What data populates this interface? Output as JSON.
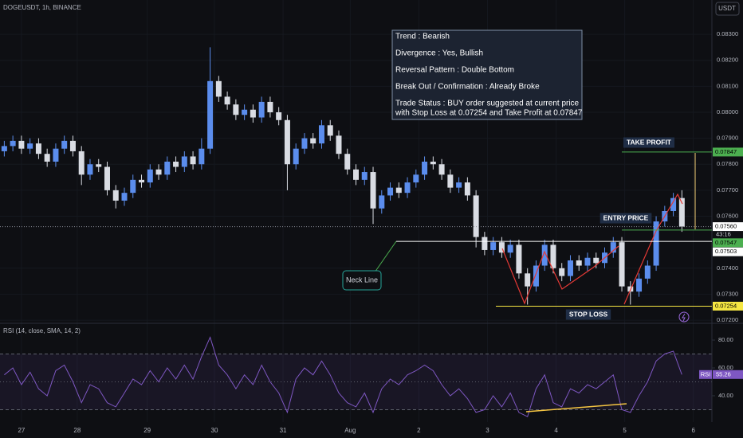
{
  "header": {
    "symbol": "DOGEUSDT, 1h, BINANCE",
    "currency": "USDT"
  },
  "chart_data": {
    "type": "candlestick",
    "x": [
      1.5,
      4.5,
      7.5,
      10.5,
      13.5,
      16.5,
      19.5,
      22.5,
      25.5,
      28.5,
      31.5,
      34.5,
      37.5,
      40.5,
      43.5,
      46.5,
      49.5,
      52.5,
      55.5,
      58.5,
      61.5,
      64.5,
      67.5,
      70.5,
      73.5,
      76.5,
      79.5,
      82.5,
      85.5,
      88.5,
      91.5,
      94.5,
      97.5,
      100.5,
      103.5,
      106.5,
      109.5,
      112.5,
      115.5,
      118.5,
      121.5,
      124.5,
      127.5,
      130.5,
      133.5,
      136.5,
      139.5,
      142.5,
      145.5,
      148.5,
      151.5,
      154.5,
      157.5,
      160.5,
      163.5,
      166.5,
      169.5,
      172.5,
      175.5,
      178.5,
      181.5,
      184.5,
      187.5,
      190.5,
      193.5,
      196.5,
      199.5,
      202.5,
      205.5,
      208.5,
      211.5,
      214.5,
      217.5,
      220.5,
      223.5,
      226.5,
      229.5,
      232.5,
      235.5,
      238.5
    ],
    "candles": [
      [
        0.0785,
        0.0789,
        0.0783,
        0.0787
      ],
      [
        0.0787,
        0.0791,
        0.0785,
        0.0789
      ],
      [
        0.0789,
        0.0791,
        0.0784,
        0.0786
      ],
      [
        0.0786,
        0.079,
        0.0784,
        0.0788
      ],
      [
        0.0788,
        0.079,
        0.0782,
        0.0784
      ],
      [
        0.0784,
        0.0786,
        0.0779,
        0.0781
      ],
      [
        0.0781,
        0.0788,
        0.0779,
        0.0786
      ],
      [
        0.0786,
        0.0791,
        0.0784,
        0.0789
      ],
      [
        0.0789,
        0.0791,
        0.0783,
        0.0785
      ],
      [
        0.0785,
        0.0787,
        0.0772,
        0.0776
      ],
      [
        0.0776,
        0.0782,
        0.0774,
        0.078
      ],
      [
        0.078,
        0.0782,
        0.0777,
        0.0779
      ],
      [
        0.0779,
        0.0781,
        0.0768,
        0.077
      ],
      [
        0.077,
        0.0772,
        0.0763,
        0.0766
      ],
      [
        0.0766,
        0.0771,
        0.0764,
        0.0769
      ],
      [
        0.0769,
        0.0776,
        0.0767,
        0.0774
      ],
      [
        0.0774,
        0.0776,
        0.0771,
        0.0773
      ],
      [
        0.0773,
        0.078,
        0.0771,
        0.0778
      ],
      [
        0.0778,
        0.078,
        0.0774,
        0.0776
      ],
      [
        0.0776,
        0.0783,
        0.0774,
        0.0781
      ],
      [
        0.0781,
        0.0783,
        0.0777,
        0.0779
      ],
      [
        0.0779,
        0.0785,
        0.0777,
        0.0783
      ],
      [
        0.0783,
        0.0785,
        0.0778,
        0.078
      ],
      [
        0.078,
        0.079,
        0.0778,
        0.0786
      ],
      [
        0.0786,
        0.0825,
        0.0784,
        0.0812
      ],
      [
        0.0812,
        0.0814,
        0.0804,
        0.0806
      ],
      [
        0.0806,
        0.0808,
        0.0801,
        0.0803
      ],
      [
        0.0803,
        0.0805,
        0.0797,
        0.0799
      ],
      [
        0.0799,
        0.0803,
        0.0797,
        0.0801
      ],
      [
        0.0801,
        0.0803,
        0.0796,
        0.0798
      ],
      [
        0.0798,
        0.0806,
        0.0796,
        0.0804
      ],
      [
        0.0804,
        0.0806,
        0.0798,
        0.08
      ],
      [
        0.08,
        0.0802,
        0.0795,
        0.0797
      ],
      [
        0.0797,
        0.0799,
        0.077,
        0.078
      ],
      [
        0.078,
        0.0788,
        0.0778,
        0.0786
      ],
      [
        0.0786,
        0.0792,
        0.0784,
        0.079
      ],
      [
        0.079,
        0.0792,
        0.0786,
        0.0788
      ],
      [
        0.0788,
        0.0797,
        0.0786,
        0.0795
      ],
      [
        0.0795,
        0.0797,
        0.0789,
        0.0791
      ],
      [
        0.0791,
        0.0793,
        0.0782,
        0.0784
      ],
      [
        0.0784,
        0.0786,
        0.0776,
        0.0778
      ],
      [
        0.0778,
        0.078,
        0.0772,
        0.0774
      ],
      [
        0.0774,
        0.0779,
        0.0772,
        0.0777
      ],
      [
        0.0777,
        0.0779,
        0.0757,
        0.0763
      ],
      [
        0.0763,
        0.077,
        0.0761,
        0.0768
      ],
      [
        0.0768,
        0.0773,
        0.0766,
        0.0771
      ],
      [
        0.0771,
        0.0773,
        0.0767,
        0.0769
      ],
      [
        0.0769,
        0.0775,
        0.0767,
        0.0773
      ],
      [
        0.0773,
        0.0778,
        0.0771,
        0.0776
      ],
      [
        0.0776,
        0.0783,
        0.0774,
        0.0781
      ],
      [
        0.0781,
        0.0783,
        0.0778,
        0.078
      ],
      [
        0.078,
        0.0782,
        0.0774,
        0.0776
      ],
      [
        0.0776,
        0.0778,
        0.0769,
        0.0771
      ],
      [
        0.0771,
        0.0775,
        0.0769,
        0.0773
      ],
      [
        0.0773,
        0.0775,
        0.0766,
        0.0768
      ],
      [
        0.0768,
        0.077,
        0.0748,
        0.0752
      ],
      [
        0.0752,
        0.0754,
        0.0745,
        0.0747
      ],
      [
        0.0747,
        0.0752,
        0.0745,
        0.075
      ],
      [
        0.075,
        0.0752,
        0.0744,
        0.0746
      ],
      [
        0.0746,
        0.0751,
        0.0744,
        0.0749
      ],
      [
        0.0749,
        0.0751,
        0.0736,
        0.0738
      ],
      [
        0.0738,
        0.074,
        0.0726,
        0.0733
      ],
      [
        0.0733,
        0.0743,
        0.0731,
        0.0741
      ],
      [
        0.0741,
        0.0751,
        0.0739,
        0.0749
      ],
      [
        0.0749,
        0.0751,
        0.0738,
        0.074
      ],
      [
        0.074,
        0.0742,
        0.0735,
        0.0737
      ],
      [
        0.0737,
        0.0745,
        0.0735,
        0.0743
      ],
      [
        0.0743,
        0.0745,
        0.0739,
        0.0741
      ],
      [
        0.0741,
        0.0746,
        0.0739,
        0.0744
      ],
      [
        0.0744,
        0.0746,
        0.074,
        0.0742
      ],
      [
        0.0742,
        0.0748,
        0.074,
        0.0746
      ],
      [
        0.0746,
        0.0752,
        0.0744,
        0.075
      ],
      [
        0.075,
        0.0752,
        0.0731,
        0.0733
      ],
      [
        0.0733,
        0.0735,
        0.0726,
        0.0731
      ],
      [
        0.0731,
        0.0738,
        0.0729,
        0.0736
      ],
      [
        0.0736,
        0.0743,
        0.0734,
        0.0741
      ],
      [
        0.0741,
        0.076,
        0.0739,
        0.0758
      ],
      [
        0.0758,
        0.0764,
        0.0756,
        0.0762
      ],
      [
        0.0762,
        0.0769,
        0.076,
        0.0767
      ],
      [
        0.0767,
        0.077,
        0.0754,
        0.0756
      ]
    ],
    "xlim": [
      0,
      249
    ],
    "xticks": [
      {
        "value": 7.5,
        "label": "27"
      },
      {
        "value": 27,
        "label": "28"
      },
      {
        "value": 51.5,
        "label": "29"
      },
      {
        "value": 75,
        "label": "30"
      },
      {
        "value": 99,
        "label": "31"
      },
      {
        "value": 122.5,
        "label": "Aug"
      },
      {
        "value": 146.5,
        "label": "2"
      },
      {
        "value": 170.5,
        "label": "3"
      },
      {
        "value": 194.5,
        "label": "4"
      },
      {
        "value": 218.5,
        "label": "5"
      },
      {
        "value": 242.5,
        "label": "6"
      }
    ],
    "ylim": [
      0.07191,
      0.08432
    ],
    "yticks": [
      {
        "value": 0.083,
        "label": "0.08300"
      },
      {
        "value": 0.082,
        "label": "0.08200"
      },
      {
        "value": 0.081,
        "label": "0.08100"
      },
      {
        "value": 0.08,
        "label": "0.08000"
      },
      {
        "value": 0.079,
        "label": "0.07900"
      },
      {
        "value": 0.078,
        "label": "0.07800"
      },
      {
        "value": 0.077,
        "label": "0.07700"
      },
      {
        "value": 0.076,
        "label": "0.07600"
      },
      {
        "value": 0.074,
        "label": "0.07400"
      },
      {
        "value": 0.073,
        "label": "0.07300"
      },
      {
        "value": 0.072,
        "label": "0.07200"
      }
    ],
    "grid": true,
    "colors": {
      "up": "#5b8ded",
      "down": "#d9dce3"
    },
    "levels": [
      {
        "name": "TAKE PROFIT",
        "value": 0.07847,
        "label": "0.07847",
        "color": "#4caf50"
      },
      {
        "value": 0.0756,
        "label": "0.07560",
        "countdown": "43:16",
        "color": "#ffffff"
      },
      {
        "name": "ENTRY PRICE",
        "value": 0.07547,
        "label": "0.07547",
        "color": "#4caf50"
      },
      {
        "name": "Neck Line",
        "value": 0.07503,
        "label": "0.07503",
        "color": "#ffffff"
      },
      {
        "name": "STOP LOSS",
        "value": 0.07254,
        "label": "0.07254",
        "color": "#f5e642"
      }
    ],
    "info_box": [
      "Trend : Bearish",
      "Divergence : Yes, Bullish",
      "Reversal Pattern : Double Bottom",
      "Break Out / Confirmation : Already Broke",
      "Trade Status : BUY order suggested at current price",
      "with Stop Loss at 0.07254 and Take Profit at 0.07847"
    ],
    "rsi": {
      "title": "RSI (14, close, SMA, 14, 2)",
      "values": [
        55,
        60,
        48,
        57,
        45,
        40,
        58,
        62,
        50,
        35,
        48,
        45,
        35,
        32,
        42,
        52,
        48,
        58,
        50,
        60,
        52,
        62,
        52,
        68,
        82,
        62,
        55,
        45,
        55,
        48,
        62,
        50,
        42,
        28,
        52,
        60,
        55,
        65,
        55,
        42,
        35,
        32,
        42,
        28,
        45,
        52,
        48,
        55,
        58,
        62,
        58,
        48,
        40,
        45,
        38,
        28,
        30,
        40,
        32,
        42,
        28,
        25,
        45,
        55,
        35,
        32,
        45,
        42,
        48,
        45,
        50,
        55,
        30,
        28,
        40,
        50,
        65,
        70,
        72,
        55.26
      ],
      "ylim": [
        21.1,
        90.9
      ],
      "yticks": [
        {
          "value": 80,
          "label": "80.00"
        },
        {
          "value": 60,
          "label": "60.00"
        },
        {
          "value": 40,
          "label": "40.00"
        }
      ],
      "bands": [
        70,
        50,
        30
      ],
      "color": "#7e57c2",
      "badge": "RSI",
      "current": 55.26
    }
  }
}
